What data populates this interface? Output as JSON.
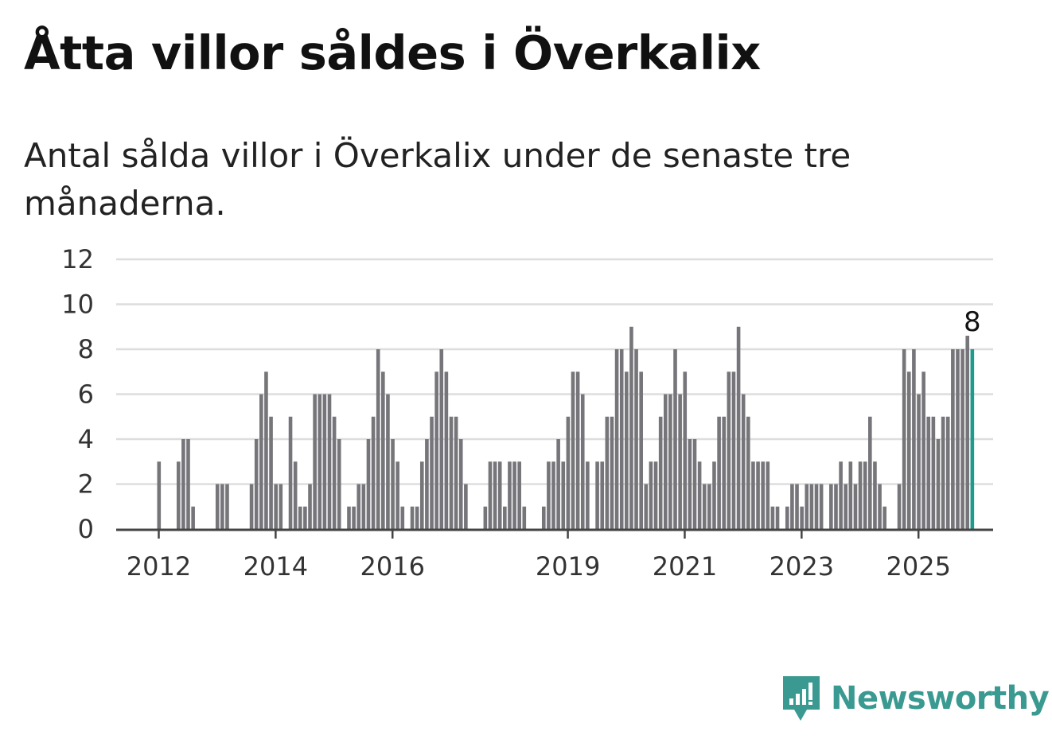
{
  "title": "Åtta villor såldes i Överkalix",
  "subtitle": "Antal sålda villor i Överkalix under de senaste tre månaderna.",
  "brand": {
    "name": "Newsworthy",
    "icon": "newsworthy-logo-icon",
    "color": "#3a9a91"
  },
  "chart_data": {
    "type": "bar",
    "start": "2011-01",
    "x_ticks": [
      "2012",
      "2014",
      "2016",
      "2019",
      "2021",
      "2023",
      "2025"
    ],
    "y_ticks": [
      0,
      2,
      4,
      6,
      8,
      10,
      12
    ],
    "ylim": [
      0,
      12
    ],
    "grid": true,
    "bar_color": "#75757a",
    "highlight_color": "#1f9a8f",
    "highlight_label": "8",
    "values": [
      null,
      null,
      null,
      null,
      null,
      null,
      null,
      null,
      null,
      null,
      null,
      null,
      3,
      null,
      null,
      null,
      3,
      4,
      4,
      1,
      null,
      null,
      null,
      null,
      2,
      2,
      2,
      null,
      null,
      null,
      null,
      2,
      4,
      6,
      7,
      5,
      2,
      2,
      null,
      5,
      3,
      1,
      1,
      2,
      6,
      6,
      6,
      6,
      5,
      4,
      null,
      1,
      1,
      2,
      2,
      4,
      5,
      8,
      7,
      6,
      4,
      3,
      1,
      null,
      1,
      1,
      3,
      4,
      5,
      7,
      8,
      7,
      5,
      5,
      4,
      2,
      null,
      null,
      null,
      1,
      3,
      3,
      3,
      1,
      3,
      3,
      3,
      1,
      null,
      null,
      null,
      1,
      3,
      3,
      4,
      3,
      5,
      7,
      7,
      6,
      3,
      null,
      3,
      3,
      5,
      5,
      8,
      8,
      7,
      9,
      8,
      7,
      2,
      3,
      3,
      5,
      6,
      6,
      8,
      6,
      7,
      4,
      4,
      3,
      2,
      2,
      3,
      5,
      5,
      7,
      7,
      9,
      6,
      5,
      3,
      3,
      3,
      3,
      1,
      1,
      null,
      1,
      2,
      2,
      1,
      2,
      2,
      2,
      2,
      null,
      2,
      2,
      3,
      2,
      3,
      2,
      3,
      3,
      5,
      3,
      2,
      1,
      null,
      null,
      2,
      8,
      7,
      8,
      6,
      7,
      5,
      5,
      4,
      5,
      5,
      8,
      8,
      8,
      8.6,
      8
    ]
  }
}
